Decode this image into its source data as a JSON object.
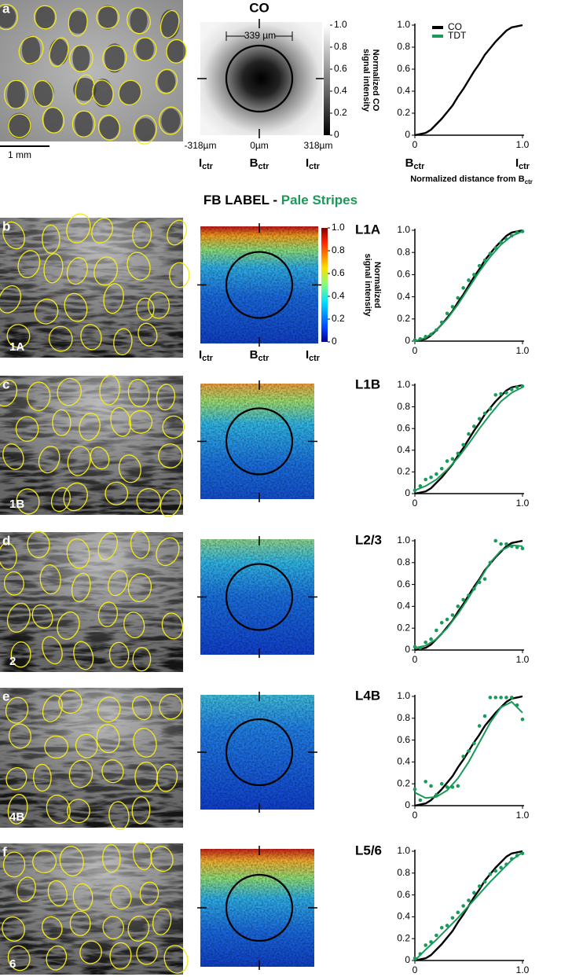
{
  "figure": {
    "co_title": "CO",
    "scale_bar": "1 mm",
    "co_width": "339 µm",
    "co_positions": [
      "-318µm",
      "0µm",
      "318µm"
    ],
    "co_axis": [
      {
        "text": "I",
        "sub": "ctr"
      },
      {
        "text": "B",
        "sub": "ctr"
      },
      {
        "text": "I",
        "sub": "ctr"
      }
    ],
    "co_colorbar": {
      "label": [
        "Normalized CO",
        "signal intensity"
      ],
      "ticks": [
        0,
        0.2,
        0.4,
        0.6,
        0.8,
        {
          "value": 1,
          "label": "1.0"
        }
      ],
      "lim": [
        0,
        1
      ]
    },
    "section_title": {
      "main": "FB LABEL - ",
      "accent": "Pale Stripes"
    },
    "fb_colorbar": {
      "label": [
        "Normalized",
        "signal intensity"
      ],
      "ticks": [
        0,
        0.2,
        0.4,
        0.6,
        0.8,
        {
          "value": 1,
          "label": "1.0"
        }
      ],
      "lim": [
        0,
        1
      ]
    },
    "fb_axis": [
      {
        "text": "I",
        "sub": "ctr"
      },
      {
        "text": "B",
        "sub": "ctr"
      },
      {
        "text": "I",
        "sub": "ctr"
      }
    ],
    "panels": [
      {
        "letter": "a"
      },
      {
        "letter": "b",
        "layer": "1A"
      },
      {
        "letter": "c",
        "layer": "1B"
      },
      {
        "letter": "d",
        "layer": "2"
      },
      {
        "letter": "e",
        "layer": "4B"
      },
      {
        "letter": "f",
        "layer": "6"
      }
    ]
  },
  "chart_data": [
    {
      "type": "line",
      "x": [
        0,
        0.05,
        0.1,
        0.15,
        0.2,
        0.25,
        0.3,
        0.35,
        0.4,
        0.45,
        0.5,
        0.55,
        0.6,
        0.65,
        0.7,
        0.75,
        0.8,
        0.85,
        0.9,
        0.95,
        1
      ],
      "series": [
        {
          "name": "CO",
          "color": "#000000",
          "values": [
            0,
            0.01,
            0.02,
            0.05,
            0.1,
            0.15,
            0.21,
            0.27,
            0.35,
            0.42,
            0.5,
            0.58,
            0.65,
            0.73,
            0.79,
            0.85,
            0.9,
            0.95,
            0.98,
            0.99,
            1
          ]
        },
        {
          "name": "TDT",
          "color": "#1a9a5a"
        }
      ],
      "xlim": [
        0,
        1
      ],
      "ylim": [
        0,
        1
      ],
      "xticks": [
        0,
        {
          "value": 1,
          "label": "1.0"
        }
      ],
      "yticks": [
        0,
        0.2,
        0.4,
        0.6,
        0.8,
        {
          "value": 1,
          "label": "1.0"
        }
      ],
      "xtick_captions": [
        {
          "text": "B",
          "sub": "ctr"
        },
        {
          "text": "I",
          "sub": "ctr"
        }
      ],
      "xlabel": {
        "text": "Normalized distance from B",
        "sub": "ctr"
      }
    },
    {
      "type": "line",
      "title": "L1A",
      "x": [
        0,
        0.05,
        0.1,
        0.15,
        0.2,
        0.25,
        0.3,
        0.35,
        0.4,
        0.45,
        0.5,
        0.55,
        0.6,
        0.65,
        0.7,
        0.75,
        0.8,
        0.85,
        0.9,
        0.95,
        1
      ],
      "series": [
        {
          "color": "#000000",
          "values": [
            0,
            0.01,
            0.02,
            0.05,
            0.1,
            0.15,
            0.21,
            0.27,
            0.35,
            0.42,
            0.5,
            0.58,
            0.65,
            0.73,
            0.79,
            0.85,
            0.9,
            0.95,
            0.98,
            0.99,
            1
          ]
        },
        {
          "color": "#1a9a5a",
          "x": [
            0,
            0.1,
            0.2,
            0.3,
            0.4,
            0.5,
            0.6,
            0.7,
            0.8,
            0.9,
            1
          ],
          "values": [
            0,
            0.03,
            0.1,
            0.2,
            0.33,
            0.48,
            0.63,
            0.76,
            0.87,
            0.95,
            0.99
          ]
        },
        {
          "color": "#1a9a5a",
          "marker": "dot",
          "values": [
            0.01,
            0.02,
            0.04,
            0.06,
            0.1,
            0.17,
            0.25,
            0.31,
            0.39,
            0.48,
            0.55,
            0.6,
            0.68,
            0.73,
            0.79,
            0.84,
            0.89,
            0.92,
            0.95,
            0.98,
            0.99
          ]
        }
      ],
      "xlim": [
        0,
        1
      ],
      "ylim": [
        0,
        1
      ],
      "xticks": [
        0,
        {
          "value": 1,
          "label": "1.0"
        }
      ],
      "yticks": [
        0,
        0.2,
        0.4,
        0.6,
        0.8,
        {
          "value": 1,
          "label": "1.0"
        }
      ]
    },
    {
      "type": "line",
      "title": "L1B",
      "x": [
        0,
        0.05,
        0.1,
        0.15,
        0.2,
        0.25,
        0.3,
        0.35,
        0.4,
        0.45,
        0.5,
        0.55,
        0.6,
        0.65,
        0.7,
        0.75,
        0.8,
        0.85,
        0.9,
        0.95,
        1
      ],
      "series": [
        {
          "color": "#000000",
          "values": [
            0,
            0.01,
            0.02,
            0.05,
            0.1,
            0.15,
            0.21,
            0.27,
            0.35,
            0.42,
            0.5,
            0.58,
            0.65,
            0.73,
            0.79,
            0.85,
            0.9,
            0.95,
            0.98,
            0.99,
            1
          ]
        },
        {
          "color": "#1a9a5a",
          "x": [
            0,
            0.1,
            0.2,
            0.3,
            0.4,
            0.5,
            0.6,
            0.7,
            0.8,
            0.9,
            1
          ],
          "values": [
            0.03,
            0.07,
            0.13,
            0.22,
            0.33,
            0.46,
            0.6,
            0.73,
            0.85,
            0.93,
            0.98
          ]
        },
        {
          "color": "#1a9a5a",
          "marker": "dot",
          "values": [
            0.03,
            0.07,
            0.13,
            0.15,
            0.18,
            0.23,
            0.3,
            0.32,
            0.37,
            0.45,
            0.55,
            0.62,
            0.69,
            0.74,
            0.78,
            0.91,
            0.92,
            0.93,
            0.96,
            0.98,
            0.99
          ]
        }
      ],
      "xlim": [
        0,
        1
      ],
      "ylim": [
        0,
        1
      ],
      "xticks": [
        0,
        {
          "value": 1,
          "label": "1.0"
        }
      ],
      "yticks": [
        0,
        0.2,
        0.4,
        0.6,
        0.8,
        {
          "value": 1,
          "label": "1.0"
        }
      ]
    },
    {
      "type": "line",
      "title": "L2/3",
      "x": [
        0,
        0.05,
        0.1,
        0.15,
        0.2,
        0.25,
        0.3,
        0.35,
        0.4,
        0.45,
        0.5,
        0.55,
        0.6,
        0.65,
        0.7,
        0.75,
        0.8,
        0.85,
        0.9,
        0.95,
        1
      ],
      "series": [
        {
          "color": "#000000",
          "values": [
            0,
            0.01,
            0.02,
            0.05,
            0.1,
            0.15,
            0.21,
            0.27,
            0.35,
            0.42,
            0.5,
            0.58,
            0.65,
            0.73,
            0.79,
            0.85,
            0.9,
            0.95,
            0.98,
            0.99,
            1
          ]
        },
        {
          "color": "#1a9a5a",
          "x": [
            0,
            0.1,
            0.2,
            0.3,
            0.4,
            0.5,
            0.6,
            0.7,
            0.8,
            0.9,
            1
          ],
          "values": [
            0.02,
            0.04,
            0.1,
            0.2,
            0.33,
            0.48,
            0.64,
            0.8,
            0.91,
            0.96,
            0.95
          ]
        },
        {
          "color": "#1a9a5a",
          "marker": "dot",
          "values": [
            0.03,
            0.02,
            0.07,
            0.1,
            0.18,
            0.25,
            0.28,
            0.32,
            0.4,
            0.46,
            0.5,
            0.56,
            0.62,
            0.65,
            0.8,
            1,
            0.97,
            0.97,
            0.95,
            0.94,
            0.93
          ]
        }
      ],
      "xlim": [
        0,
        1
      ],
      "ylim": [
        0,
        1
      ],
      "xticks": [
        0,
        {
          "value": 1,
          "label": "1.0"
        }
      ],
      "yticks": [
        0,
        0.2,
        0.4,
        0.6,
        0.8,
        {
          "value": 1,
          "label": "1.0"
        }
      ]
    },
    {
      "type": "line",
      "title": "L4B",
      "x": [
        0,
        0.05,
        0.1,
        0.15,
        0.2,
        0.25,
        0.3,
        0.35,
        0.4,
        0.45,
        0.5,
        0.55,
        0.6,
        0.65,
        0.7,
        0.75,
        0.8,
        0.85,
        0.9,
        0.95,
        1
      ],
      "series": [
        {
          "color": "#000000",
          "values": [
            0,
            0.01,
            0.02,
            0.05,
            0.1,
            0.15,
            0.21,
            0.27,
            0.35,
            0.42,
            0.5,
            0.58,
            0.65,
            0.73,
            0.79,
            0.85,
            0.9,
            0.95,
            0.98,
            0.99,
            1
          ]
        },
        {
          "color": "#1a9a5a",
          "x": [
            0,
            0.1,
            0.2,
            0.3,
            0.4,
            0.5,
            0.6,
            0.7,
            0.8,
            0.9,
            1
          ],
          "values": [
            0.12,
            0.07,
            0.08,
            0.14,
            0.25,
            0.4,
            0.58,
            0.76,
            0.9,
            0.95,
            0.85
          ]
        },
        {
          "color": "#1a9a5a",
          "marker": "dot",
          "values": [
            0.15,
            0.05,
            0.22,
            0.18,
            0.1,
            0.2,
            0.17,
            0.17,
            0.18,
            0.45,
            0.5,
            0.57,
            0.73,
            0.82,
            0.99,
            0.99,
            0.99,
            0.99,
            0.99,
            0.92,
            0.79
          ]
        }
      ],
      "xlim": [
        0,
        1
      ],
      "ylim": [
        0,
        1
      ],
      "xticks": [
        0,
        {
          "value": 1,
          "label": "1.0"
        }
      ],
      "yticks": [
        0,
        0.2,
        0.4,
        0.6,
        0.8,
        {
          "value": 1,
          "label": "1.0"
        }
      ]
    },
    {
      "type": "line",
      "title": "L5/6",
      "x": [
        0,
        0.05,
        0.1,
        0.15,
        0.2,
        0.25,
        0.3,
        0.35,
        0.4,
        0.45,
        0.5,
        0.55,
        0.6,
        0.65,
        0.7,
        0.75,
        0.8,
        0.85,
        0.9,
        0.95,
        1
      ],
      "series": [
        {
          "color": "#000000",
          "values": [
            0,
            0.01,
            0.02,
            0.05,
            0.1,
            0.15,
            0.21,
            0.27,
            0.35,
            0.42,
            0.5,
            0.58,
            0.65,
            0.73,
            0.79,
            0.85,
            0.9,
            0.95,
            0.98,
            0.99,
            1
          ]
        },
        {
          "color": "#1a9a5a",
          "x": [
            0,
            0.1,
            0.2,
            0.3,
            0.4,
            0.5,
            0.6,
            0.7,
            0.8,
            0.9,
            1
          ],
          "values": [
            0,
            0.1,
            0.19,
            0.29,
            0.39,
            0.5,
            0.61,
            0.72,
            0.82,
            0.92,
            0.99
          ]
        },
        {
          "color": "#1a9a5a",
          "marker": "dot",
          "values": [
            0.02,
            0.06,
            0.14,
            0.17,
            0.23,
            0.3,
            0.32,
            0.39,
            0.44,
            0.5,
            0.55,
            0.62,
            0.68,
            0.72,
            0.79,
            0.82,
            0.85,
            0.88,
            0.93,
            0.96,
            0.98
          ]
        }
      ],
      "xlim": [
        0,
        1
      ],
      "ylim": [
        0,
        1
      ],
      "xticks": [
        0,
        {
          "value": 1,
          "label": "1.0"
        }
      ],
      "yticks": [
        0,
        0.2,
        0.4,
        0.6,
        0.8,
        {
          "value": 1,
          "label": "1.0"
        }
      ]
    }
  ]
}
